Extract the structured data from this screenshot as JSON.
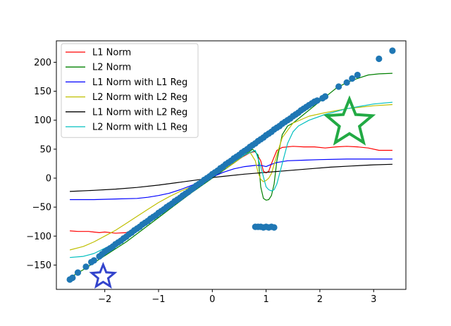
{
  "chart_data": {
    "type": "line",
    "title": "",
    "xlabel": "",
    "ylabel": "",
    "xlim": [
      -2.9,
      3.6
    ],
    "ylim": [
      -192,
      237
    ],
    "grid": false,
    "legend_position": "top-left",
    "x_ticks": [
      -2,
      -1,
      0,
      1,
      2,
      3
    ],
    "y_ticks": [
      -150,
      -100,
      -50,
      0,
      50,
      100,
      150,
      200
    ],
    "tick_labels_x": [
      "−2",
      "−1",
      "0",
      "1",
      "2",
      "3"
    ],
    "tick_labels_y": [
      "−150",
      "−100",
      "−50",
      "0",
      "50",
      "100",
      "150",
      "200"
    ],
    "series": [
      {
        "name": "L1 Norm",
        "color": "#ff0000",
        "x": [
          -2.65,
          -2.5,
          -2.3,
          -2.1,
          -2.0,
          -1.8,
          -1.6,
          -1.4,
          -1.2,
          -1.0,
          -0.8,
          -0.6,
          -0.4,
          -0.2,
          0.0,
          0.2,
          0.4,
          0.55,
          0.7,
          0.8,
          0.9,
          0.95,
          1.0,
          1.05,
          1.1,
          1.2,
          1.3,
          1.5,
          1.7,
          1.9,
          2.1,
          2.3,
          2.5,
          2.7,
          2.9,
          3.1,
          3.35
        ],
        "y": [
          -91,
          -92,
          -92,
          -94,
          -93,
          -95,
          -94,
          -85,
          -72,
          -58,
          -46,
          -34,
          -22,
          -10,
          2,
          14,
          26,
          36,
          44,
          46,
          30,
          12,
          9,
          12,
          25,
          48,
          53,
          55,
          54,
          54,
          52,
          54,
          55,
          54,
          52,
          48,
          48
        ]
      },
      {
        "name": "L2 Norm",
        "color": "#008000",
        "x": [
          -2.65,
          -2.4,
          -2.2,
          -2.0,
          -1.8,
          -1.6,
          -1.4,
          -1.2,
          -1.0,
          -0.8,
          -0.6,
          -0.4,
          -0.2,
          0.0,
          0.2,
          0.4,
          0.6,
          0.75,
          0.85,
          0.9,
          0.95,
          1.0,
          1.05,
          1.1,
          1.15,
          1.2,
          1.3,
          1.4,
          1.5,
          1.7,
          1.9,
          2.1,
          2.3,
          2.5,
          2.7,
          2.9,
          3.1,
          3.35
        ],
        "y": [
          -172,
          -158,
          -146,
          -134,
          -122,
          -110,
          -96,
          -82,
          -68,
          -54,
          -40,
          -26,
          -13,
          0,
          13,
          26,
          40,
          50,
          40,
          -15,
          -35,
          -38,
          -37,
          -30,
          -10,
          30,
          75,
          90,
          95,
          110,
          125,
          140,
          155,
          165,
          172,
          178,
          180,
          181
        ]
      },
      {
        "name": "L1 Norm with L1 Reg",
        "color": "#0000ff",
        "x": [
          -2.65,
          -2.2,
          -1.8,
          -1.4,
          -1.2,
          -1.0,
          -0.8,
          -0.6,
          -0.4,
          -0.2,
          0.0,
          0.2,
          0.4,
          0.6,
          0.8,
          0.9,
          0.95,
          1.0,
          1.05,
          1.1,
          1.2,
          1.4,
          1.7,
          2.0,
          2.5,
          3.0,
          3.35
        ],
        "y": [
          -37,
          -37,
          -36,
          -35,
          -33,
          -30,
          -26,
          -20,
          -13,
          -6,
          2,
          10,
          16,
          20,
          22,
          22,
          21,
          20,
          22,
          24,
          27,
          30,
          31,
          32,
          33,
          33,
          33
        ]
      },
      {
        "name": "L2 Norm with L2 Reg",
        "color": "#bfbf00",
        "x": [
          -2.65,
          -2.4,
          -2.2,
          -2.0,
          -1.8,
          -1.6,
          -1.4,
          -1.2,
          -1.0,
          -0.8,
          -0.6,
          -0.4,
          -0.2,
          0.0,
          0.2,
          0.4,
          0.6,
          0.7,
          0.8,
          0.85,
          0.9,
          0.95,
          1.0,
          1.05,
          1.1,
          1.2,
          1.3,
          1.5,
          1.8,
          2.1,
          2.5,
          3.0,
          3.35
        ],
        "y": [
          -124,
          -118,
          -110,
          -100,
          -90,
          -78,
          -66,
          -54,
          -42,
          -32,
          -23,
          -15,
          -6,
          4,
          14,
          26,
          40,
          45,
          30,
          10,
          -2,
          -6,
          -4,
          0,
          8,
          40,
          70,
          95,
          107,
          113,
          120,
          125,
          127
        ]
      },
      {
        "name": "L1 Norm with L2 Reg",
        "color": "#000000",
        "x": [
          -2.65,
          -2.2,
          -1.8,
          -1.4,
          -1.0,
          -0.6,
          -0.2,
          0.0,
          0.2,
          0.6,
          1.0,
          1.4,
          1.8,
          2.2,
          2.6,
          3.0,
          3.35
        ],
        "y": [
          -23,
          -21,
          -19,
          -16,
          -12,
          -7,
          -2,
          1,
          3,
          7,
          10,
          13,
          16,
          19,
          21,
          23,
          24
        ]
      },
      {
        "name": "L2 Norm with L1 Reg",
        "color": "#00bfbf",
        "x": [
          -2.65,
          -2.4,
          -2.2,
          -2.0,
          -1.8,
          -1.6,
          -1.4,
          -1.2,
          -1.0,
          -0.8,
          -0.6,
          -0.4,
          -0.2,
          0.0,
          0.2,
          0.4,
          0.6,
          0.8,
          0.9,
          1.0,
          1.05,
          1.1,
          1.15,
          1.2,
          1.3,
          1.4,
          1.5,
          1.6,
          1.8,
          2.1,
          2.5,
          3.0,
          3.35
        ],
        "y": [
          -137,
          -135,
          -130,
          -121,
          -112,
          -100,
          -88,
          -74,
          -60,
          -46,
          -32,
          -18,
          -6,
          4,
          16,
          28,
          40,
          48,
          20,
          -15,
          -20,
          -22,
          -20,
          -10,
          25,
          60,
          80,
          90,
          100,
          110,
          120,
          128,
          131
        ]
      }
    ],
    "scatter": {
      "name": "data points",
      "color": "#1f77b4",
      "x": [
        -2.65,
        -2.6,
        -2.5,
        -2.35,
        -2.25,
        -2.2,
        -2.1,
        -2.05,
        -2.0,
        -1.95,
        -1.9,
        -1.85,
        -1.8,
        -1.75,
        -1.7,
        -1.65,
        -1.6,
        -1.55,
        -1.5,
        -1.45,
        -1.4,
        -1.35,
        -1.3,
        -1.25,
        -1.2,
        -1.15,
        -1.1,
        -1.05,
        -1.0,
        -0.95,
        -0.9,
        -0.85,
        -0.8,
        -0.75,
        -0.7,
        -0.65,
        -0.6,
        -0.55,
        -0.5,
        -0.45,
        -0.4,
        -0.35,
        -0.3,
        -0.25,
        -0.2,
        -0.15,
        -0.1,
        -0.05,
        0.0,
        0.05,
        0.1,
        0.15,
        0.2,
        0.25,
        0.3,
        0.35,
        0.4,
        0.45,
        0.5,
        0.55,
        0.6,
        0.65,
        0.7,
        0.75,
        0.8,
        0.85,
        0.9,
        0.95,
        1.0,
        1.05,
        1.1,
        1.15,
        1.2,
        1.25,
        1.3,
        1.35,
        1.4,
        1.45,
        1.5,
        1.55,
        1.6,
        1.65,
        1.7,
        1.75,
        1.8,
        1.85,
        1.9,
        1.95,
        2.05,
        2.1,
        2.35,
        2.5,
        2.6,
        2.7,
        3.1,
        3.35,
        0.8,
        0.85,
        0.9,
        0.95,
        1.0,
        1.05,
        1.1,
        1.15
      ],
      "y": [
        -175,
        -172,
        -163,
        -153,
        -145,
        -142,
        -135,
        -131,
        -127,
        -124,
        -121,
        -118,
        -114,
        -111,
        -108,
        -104,
        -101,
        -97,
        -94,
        -90,
        -87,
        -84,
        -80,
        -77,
        -74,
        -70,
        -67,
        -64,
        -60,
        -57,
        -54,
        -50,
        -47,
        -44,
        -40,
        -37,
        -34,
        -30,
        -27,
        -24,
        -20,
        -17,
        -13,
        -10,
        -7,
        -3,
        0,
        3,
        7,
        10,
        13,
        17,
        20,
        24,
        27,
        30,
        34,
        37,
        40,
        44,
        47,
        50,
        54,
        57,
        60,
        64,
        67,
        70,
        74,
        77,
        80,
        84,
        87,
        90,
        94,
        97,
        100,
        103,
        107,
        110,
        113,
        117,
        120,
        123,
        126,
        129,
        132,
        134,
        138,
        141,
        158,
        165,
        172,
        178,
        206,
        220,
        -84,
        -84,
        -84,
        -85,
        -84,
        -85,
        -84,
        -85
      ]
    },
    "markers": [
      {
        "name": "star-large-green",
        "color": "#22aa44",
        "x": 2.55,
        "y": 95,
        "size": "large"
      },
      {
        "name": "star-small-blue",
        "color": "#3344cc",
        "x": -2.03,
        "y": -170,
        "size": "small"
      }
    ]
  }
}
